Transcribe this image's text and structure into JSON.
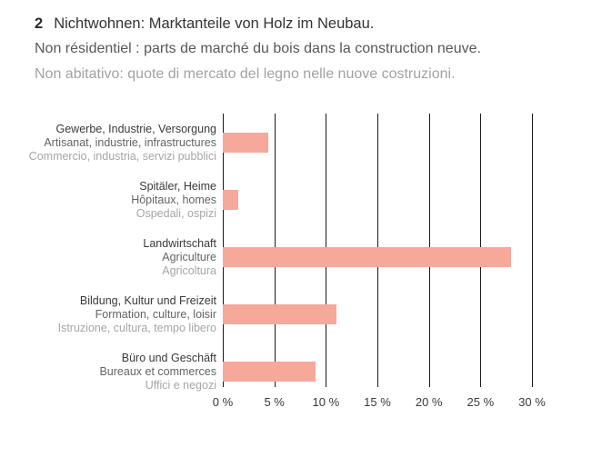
{
  "header": {
    "number": "2",
    "title_de": "Nichtwohnen: Marktanteile von Holz im Neubau.",
    "title_fr": "Non résidentiel : parts de marché du bois dans la construction neuve.",
    "title_it": "Non abitativo: quote di mercato del legno nelle nuove costruzioni."
  },
  "colors": {
    "bar": "#f6a89a",
    "grid": "#1a1a1a",
    "label_de": "#3a3a3a",
    "label_fr": "#646464",
    "label_it": "#a6a6a6"
  },
  "chart_data": {
    "type": "bar",
    "orientation": "horizontal",
    "title": "2 Nichtwohnen: Marktanteile von Holz im Neubau.",
    "subtitle_fr": "Non résidentiel : parts de marché du bois dans la construction neuve.",
    "subtitle_it": "Non abitativo: quote di mercato del legno nelle nuove costruzioni.",
    "categories": [
      {
        "de": "Gewerbe, Industrie, Versorgung",
        "fr": "Artisanat, industrie, infrastructures",
        "it": "Commercio, industria, servizi pubblici"
      },
      {
        "de": "Spitäler, Heime",
        "fr": "Hôpitaux, homes",
        "it": "Ospedali, ospizi"
      },
      {
        "de": "Landwirtschaft",
        "fr": "Agriculture",
        "it": "Agricoltura"
      },
      {
        "de": "Bildung, Kultur und Freizeit",
        "fr": "Formation, culture, loisir",
        "it": "Istruzione, cultura, tempo libero"
      },
      {
        "de": "Büro und Geschäft",
        "fr": "Bureaux et commerces",
        "it": "Uffici e negozi"
      }
    ],
    "values": [
      4.4,
      1.5,
      28,
      11,
      9
    ],
    "unit": "%",
    "xlabel": "",
    "ylabel": "",
    "xlim": [
      0,
      30
    ],
    "xticks": [
      0,
      5,
      10,
      15,
      20,
      25,
      30
    ],
    "xtick_labels": [
      "0 %",
      "5 %",
      "10 %",
      "15 %",
      "20 %",
      "25 %",
      "30 %"
    ],
    "grid": "vertical-gridlines",
    "legend": "none"
  }
}
